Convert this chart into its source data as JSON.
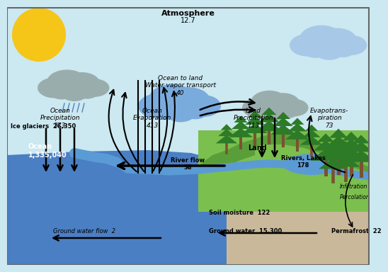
{
  "bg_sky": "#cce8f0",
  "ocean_color": "#4b7fc4",
  "land_color": "#7bbf4e",
  "land_dark": "#5a9e3a",
  "ground_color": "#c9b99a",
  "river_color": "#5b9bd5",
  "sun_color": "#f5c518",
  "cloud_gray": "#9aadad",
  "cloud_blue": "#7aabdd",
  "cloud_blue2": "#a8c8e8",
  "tree_green": "#2d7a27",
  "tree_trunk": "#7a5230",
  "title": "Atmosphere",
  "title_val": "12.7",
  "lbl_ocean_precip": "Ocean\nPrecipitation\n373",
  "lbl_ocean_evap": "Ocean\nEvaporation\n413",
  "lbl_vapor": "Ocean to land\nWater vapor transport\n40",
  "lbl_land_precip": "Land\nPrecipitation\n113",
  "lbl_evap": "Evapotrans-\npiration\n73",
  "lbl_ice": "Ice glaciers  26,350",
  "lbl_ocean": "Ocean\n1,335,040",
  "lbl_land": "Land",
  "lbl_river": "River flow\n38",
  "lbl_rivers_lakes": "Rivers, Lakes\n178",
  "lbl_soil": "Soil moisture  122",
  "lbl_gwflow": "Ground water flow  2",
  "lbl_gw": "Ground water  15,300",
  "lbl_permafrost": "Permafrost  22",
  "lbl_infiltration": "Infiltration",
  "lbl_percolation": "Percolation"
}
